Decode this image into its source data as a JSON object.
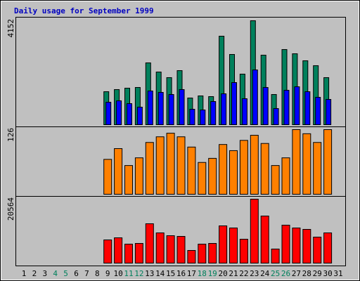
{
  "chart_data": {
    "type": "bar",
    "title": "Daily usage for September 1999",
    "categories": [
      "1",
      "2",
      "3",
      "4",
      "5",
      "6",
      "7",
      "8",
      "9",
      "10",
      "11",
      "12",
      "13",
      "14",
      "15",
      "16",
      "17",
      "18",
      "19",
      "20",
      "21",
      "22",
      "23",
      "24",
      "25",
      "26",
      "27",
      "28",
      "29",
      "30",
      "31"
    ],
    "label_colors": [
      "#000000",
      "#000000",
      "#000000",
      "#00805c",
      "#00805c",
      "#000000",
      "#000000",
      "#000000",
      "#000000",
      "#000000",
      "#00805c",
      "#00805c",
      "#000000",
      "#000000",
      "#000000",
      "#000000",
      "#000000",
      "#00805c",
      "#00805c",
      "#000000",
      "#000000",
      "#000000",
      "#000000",
      "#000000",
      "#00805c",
      "#00805c",
      "#000000",
      "#000000",
      "#000000",
      "#000000",
      "#000000"
    ],
    "panels": [
      {
        "ylim": [
          0,
          4152
        ],
        "yticks": [
          4152
        ],
        "series": [
          {
            "color": "#00805c",
            "values": [
              null,
              null,
              null,
              null,
              null,
              null,
              null,
              null,
              1318,
              1403,
              1459,
              1487,
              2469,
              2104,
              1880,
              2160,
              1066,
              1150,
              1122,
              3535,
              2805,
              2020,
              4152,
              2777,
              1206,
              3002,
              2833,
              2553,
              2357,
              1880,
              null
            ]
          },
          {
            "color": "#0000ff",
            "values": [
              null,
              null,
              null,
              null,
              null,
              null,
              null,
              null,
              898,
              954,
              842,
              701,
              1347,
              1290,
              1206,
              1403,
              617,
              589,
              926,
              1234,
              1683,
              1038,
              2188,
              1487,
              645,
              1375,
              1515,
              1318,
              1094,
              1010,
              null
            ]
          }
        ]
      },
      {
        "ylim": [
          0,
          126
        ],
        "yticks": [
          126
        ],
        "series": [
          {
            "color": "#ff8000",
            "values": [
              null,
              null,
              null,
              null,
              null,
              null,
              null,
              null,
              68,
              89,
              56,
              71,
              101,
              112,
              119,
              112,
              92,
              62,
              70,
              97,
              85,
              105,
              115,
              99,
              56,
              71,
              126,
              118,
              101,
              126,
              null
            ]
          }
        ]
      },
      {
        "ylim": [
          0,
          20564
        ],
        "yticks": [
          20564
        ],
        "series": [
          {
            "color": "#ff0000",
            "values": [
              null,
              null,
              null,
              null,
              null,
              null,
              null,
              null,
              7457,
              8135,
              6101,
              6327,
              12654,
              9717,
              8813,
              8587,
              4068,
              6101,
              6327,
              11977,
              11299,
              7683,
              20564,
              15140,
              4519,
              12203,
              11299,
              10847,
              8361,
              9717,
              null
            ]
          }
        ]
      }
    ]
  }
}
